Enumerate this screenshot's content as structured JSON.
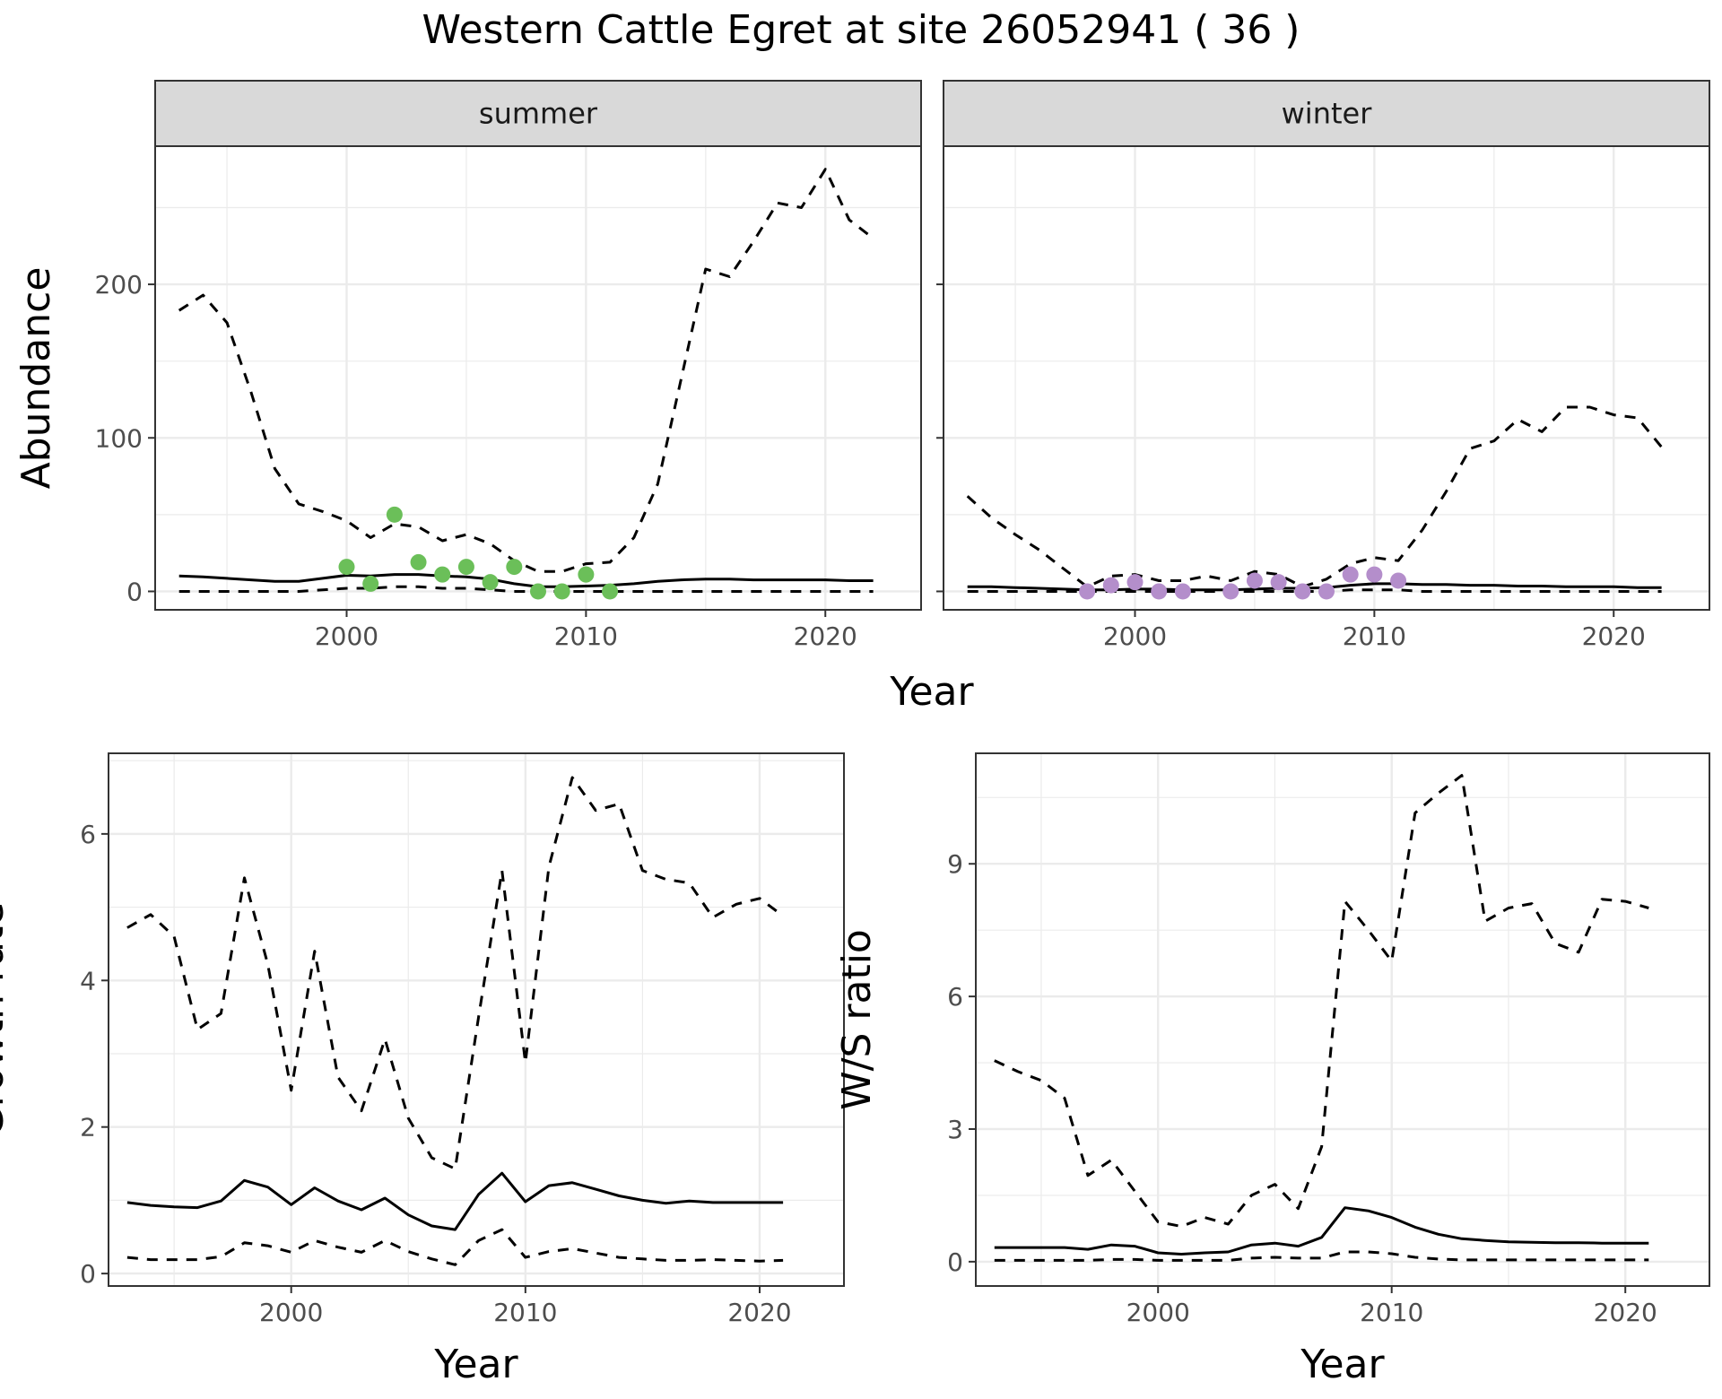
{
  "title": "Western Cattle Egret at site 26052941 ( 36 )",
  "colors": {
    "summer_points": "#6bbf59",
    "winter_points": "#b48ecb",
    "line": "#000000",
    "strip_fill": "#d9d9d9"
  },
  "chart_data": [
    {
      "type": "line",
      "panel": "summer",
      "strip_label": "summer",
      "ylabel": "Abundance",
      "xlabel": "Year",
      "xlim": [
        1992,
        2024
      ],
      "ylim": [
        -12,
        290
      ],
      "x_ticks": [
        2000,
        2010,
        2020
      ],
      "y_ticks": [
        0,
        100,
        200
      ],
      "grid": true,
      "series": [
        {
          "style": "solid",
          "x": [
            1993,
            1994,
            1995,
            1996,
            1997,
            1998,
            1999,
            2000,
            2001,
            2002,
            2003,
            2004,
            2005,
            2006,
            2007,
            2008,
            2009,
            2010,
            2011,
            2012,
            2013,
            2014,
            2015,
            2016,
            2017,
            2018,
            2019,
            2020,
            2021,
            2022
          ],
          "values": [
            10,
            9.5,
            8.5,
            7.5,
            6.5,
            6.5,
            8.5,
            10.5,
            10,
            11,
            11,
            10,
            9.5,
            8,
            5,
            3,
            3,
            3.5,
            4,
            5,
            6.5,
            7.5,
            8,
            8,
            7.5,
            7.5,
            7.5,
            7.5,
            7,
            7
          ]
        },
        {
          "style": "dashed",
          "x": [
            1993,
            1994,
            1995,
            1996,
            1997,
            1998,
            1999,
            2000,
            2001,
            2002,
            2003,
            2004,
            2005,
            2006,
            2007,
            2008,
            2009,
            2010,
            2011,
            2012,
            2013,
            2014,
            2015,
            2016,
            2017,
            2018,
            2019,
            2020,
            2021,
            2022
          ],
          "values": [
            183,
            193,
            175,
            130,
            80,
            57,
            52,
            46,
            35,
            44,
            42,
            33,
            37,
            31,
            20,
            13,
            13,
            18,
            19,
            35,
            70,
            140,
            210,
            205,
            228,
            253,
            250,
            275,
            242,
            230
          ]
        },
        {
          "style": "dashed",
          "x": [
            1993,
            1994,
            1995,
            1996,
            1997,
            1998,
            1999,
            2000,
            2001,
            2002,
            2003,
            2004,
            2005,
            2006,
            2007,
            2008,
            2009,
            2010,
            2011,
            2012,
            2013,
            2014,
            2015,
            2016,
            2017,
            2018,
            2019,
            2020,
            2021,
            2022
          ],
          "values": [
            0,
            0,
            0,
            0,
            0,
            0,
            1,
            2,
            2,
            3,
            3,
            2,
            2,
            1,
            0,
            0,
            0,
            0,
            0,
            0,
            0,
            0,
            0,
            0,
            0,
            0,
            0,
            0,
            0,
            0
          ]
        }
      ],
      "points": {
        "x": [
          2000,
          2001,
          2002,
          2003,
          2004,
          2005,
          2006,
          2007,
          2008,
          2009,
          2010,
          2011
        ],
        "values": [
          16,
          5,
          50,
          19,
          11,
          16,
          6,
          16,
          0,
          0,
          11,
          0
        ]
      }
    },
    {
      "type": "line",
      "panel": "winter",
      "strip_label": "winter",
      "xlim": [
        1992,
        2024
      ],
      "ylim": [
        -12,
        290
      ],
      "x_ticks": [
        2000,
        2010,
        2020
      ],
      "y_ticks": [
        0,
        100,
        200
      ],
      "grid": true,
      "series": [
        {
          "style": "solid",
          "x": [
            1993,
            1994,
            1995,
            1996,
            1997,
            1998,
            1999,
            2000,
            2001,
            2002,
            2003,
            2004,
            2005,
            2006,
            2007,
            2008,
            2009,
            2010,
            2011,
            2012,
            2013,
            2014,
            2015,
            2016,
            2017,
            2018,
            2019,
            2020,
            2021,
            2022
          ],
          "values": [
            3,
            3,
            2.5,
            2,
            1.5,
            1,
            1,
            1.5,
            1.5,
            1,
            1,
            1,
            1.5,
            2,
            2,
            2.5,
            4,
            5,
            5,
            4.5,
            4.5,
            4,
            4,
            3.5,
            3.5,
            3,
            3,
            3,
            2.5,
            2.5
          ]
        },
        {
          "style": "dashed",
          "x": [
            1993,
            1994,
            1995,
            1996,
            1997,
            1998,
            1999,
            2000,
            2001,
            2002,
            2003,
            2004,
            2005,
            2006,
            2007,
            2008,
            2009,
            2010,
            2011,
            2012,
            2013,
            2014,
            2015,
            2016,
            2017,
            2018,
            2019,
            2020,
            2021,
            2022
          ],
          "values": [
            62,
            48,
            37,
            27,
            15,
            3,
            10,
            11,
            7,
            7,
            10,
            7,
            13,
            11,
            3,
            8,
            18,
            22,
            20,
            40,
            65,
            93,
            98,
            112,
            104,
            120,
            120,
            115,
            113,
            94
          ]
        },
        {
          "style": "dashed",
          "x": [
            1993,
            1994,
            1995,
            1996,
            1997,
            1998,
            1999,
            2000,
            2001,
            2002,
            2003,
            2004,
            2005,
            2006,
            2007,
            2008,
            2009,
            2010,
            2011,
            2012,
            2013,
            2014,
            2015,
            2016,
            2017,
            2018,
            2019,
            2020,
            2021,
            2022
          ],
          "values": [
            0,
            0,
            0,
            0,
            0,
            0,
            0,
            0,
            0,
            0,
            0,
            0,
            0,
            0,
            0,
            0,
            1,
            1,
            1,
            0,
            0,
            0,
            0,
            0,
            0,
            0,
            0,
            0,
            0,
            0
          ]
        }
      ],
      "points": {
        "x": [
          1998,
          1999,
          2000,
          2001,
          2002,
          2004,
          2005,
          2006,
          2007,
          2008,
          2009,
          2010,
          2011
        ],
        "values": [
          0,
          4,
          6,
          0,
          0,
          0,
          7,
          6,
          0,
          0,
          11,
          11,
          7
        ]
      }
    },
    {
      "type": "line",
      "panel": "growth",
      "ylabel": "Growth rate",
      "xlabel": "Year",
      "xlim": [
        1992.2,
        2023.6
      ],
      "ylim": [
        -0.17,
        7.1
      ],
      "x_ticks": [
        2000,
        2010,
        2020
      ],
      "y_ticks": [
        0,
        2,
        4,
        6
      ],
      "grid": true,
      "series": [
        {
          "style": "solid",
          "x": [
            1993,
            1994,
            1995,
            1996,
            1997,
            1998,
            1999,
            2000,
            2001,
            2002,
            2003,
            2004,
            2005,
            2006,
            2007,
            2008,
            2009,
            2010,
            2011,
            2012,
            2013,
            2014,
            2015,
            2016,
            2017,
            2018,
            2019,
            2020,
            2021
          ],
          "values": [
            0.97,
            0.93,
            0.91,
            0.9,
            0.99,
            1.27,
            1.18,
            0.94,
            1.17,
            0.99,
            0.87,
            1.03,
            0.8,
            0.65,
            0.6,
            1.08,
            1.37,
            0.98,
            1.2,
            1.24,
            1.15,
            1.06,
            1.0,
            0.96,
            0.99,
            0.97,
            0.97,
            0.97,
            0.97
          ]
        },
        {
          "style": "dashed",
          "x": [
            1993,
            1994,
            1995,
            1996,
            1997,
            1998,
            1999,
            2000,
            2001,
            2002,
            2003,
            2004,
            2005,
            2006,
            2007,
            2008,
            2009,
            2010,
            2011,
            2012,
            2013,
            2014,
            2015,
            2016,
            2017,
            2018,
            2019,
            2020,
            2021
          ],
          "values": [
            4.72,
            4.9,
            4.6,
            3.33,
            3.55,
            5.4,
            4.22,
            2.5,
            4.4,
            2.68,
            2.22,
            3.2,
            2.12,
            1.58,
            1.43,
            3.5,
            5.5,
            2.88,
            5.55,
            6.77,
            6.32,
            6.41,
            5.5,
            5.38,
            5.33,
            4.86,
            5.04,
            5.12,
            4.88
          ]
        },
        {
          "style": "dashed",
          "x": [
            1993,
            1994,
            1995,
            1996,
            1997,
            1998,
            1999,
            2000,
            2001,
            2002,
            2003,
            2004,
            2005,
            2006,
            2007,
            2008,
            2009,
            2010,
            2011,
            2012,
            2013,
            2014,
            2015,
            2016,
            2017,
            2018,
            2019,
            2020,
            2021
          ],
          "values": [
            0.22,
            0.19,
            0.19,
            0.19,
            0.23,
            0.42,
            0.38,
            0.29,
            0.45,
            0.36,
            0.29,
            0.45,
            0.3,
            0.2,
            0.12,
            0.45,
            0.6,
            0.22,
            0.3,
            0.34,
            0.28,
            0.22,
            0.2,
            0.18,
            0.18,
            0.19,
            0.18,
            0.17,
            0.18
          ]
        }
      ]
    },
    {
      "type": "line",
      "panel": "ws-ratio",
      "ylabel": "W/S ratio",
      "xlabel": "Year",
      "xlim": [
        1992.2,
        2023.6
      ],
      "ylim": [
        -0.55,
        11.5
      ],
      "x_ticks": [
        2000,
        2010,
        2020
      ],
      "y_ticks": [
        0,
        3,
        6,
        9
      ],
      "grid": true,
      "series": [
        {
          "style": "solid",
          "x": [
            1993,
            1994,
            1995,
            1996,
            1997,
            1998,
            1999,
            2000,
            2001,
            2002,
            2003,
            2004,
            2005,
            2006,
            2007,
            2008,
            2009,
            2010,
            2011,
            2012,
            2013,
            2014,
            2015,
            2016,
            2017,
            2018,
            2019,
            2020,
            2021
          ],
          "values": [
            0.32,
            0.32,
            0.32,
            0.32,
            0.28,
            0.38,
            0.35,
            0.2,
            0.17,
            0.2,
            0.22,
            0.38,
            0.42,
            0.35,
            0.55,
            1.22,
            1.15,
            1.0,
            0.78,
            0.62,
            0.52,
            0.48,
            0.45,
            0.44,
            0.43,
            0.43,
            0.42,
            0.42,
            0.42
          ]
        },
        {
          "style": "dashed",
          "x": [
            1993,
            1994,
            1995,
            1996,
            1997,
            1998,
            1999,
            2000,
            2001,
            2002,
            2003,
            2004,
            2005,
            2006,
            2007,
            2008,
            2009,
            2010,
            2011,
            2012,
            2013,
            2014,
            2015,
            2016,
            2017,
            2018,
            2019,
            2020,
            2021
          ],
          "values": [
            4.55,
            4.3,
            4.1,
            3.7,
            1.95,
            2.3,
            1.6,
            0.9,
            0.8,
            1.0,
            0.85,
            1.5,
            1.75,
            1.2,
            2.6,
            8.15,
            7.5,
            6.8,
            10.15,
            10.6,
            11.0,
            7.7,
            8.0,
            8.1,
            7.2,
            7.0,
            8.2,
            8.15,
            8.0
          ]
        },
        {
          "style": "dashed",
          "x": [
            1993,
            1994,
            1995,
            1996,
            1997,
            1998,
            1999,
            2000,
            2001,
            2002,
            2003,
            2004,
            2005,
            2006,
            2007,
            2008,
            2009,
            2010,
            2011,
            2012,
            2013,
            2014,
            2015,
            2016,
            2017,
            2018,
            2019,
            2020,
            2021
          ],
          "values": [
            0.03,
            0.03,
            0.03,
            0.03,
            0.03,
            0.05,
            0.05,
            0.03,
            0.03,
            0.03,
            0.03,
            0.08,
            0.1,
            0.08,
            0.08,
            0.22,
            0.22,
            0.18,
            0.1,
            0.06,
            0.04,
            0.04,
            0.04,
            0.04,
            0.04,
            0.04,
            0.04,
            0.04,
            0.04
          ]
        }
      ]
    }
  ]
}
